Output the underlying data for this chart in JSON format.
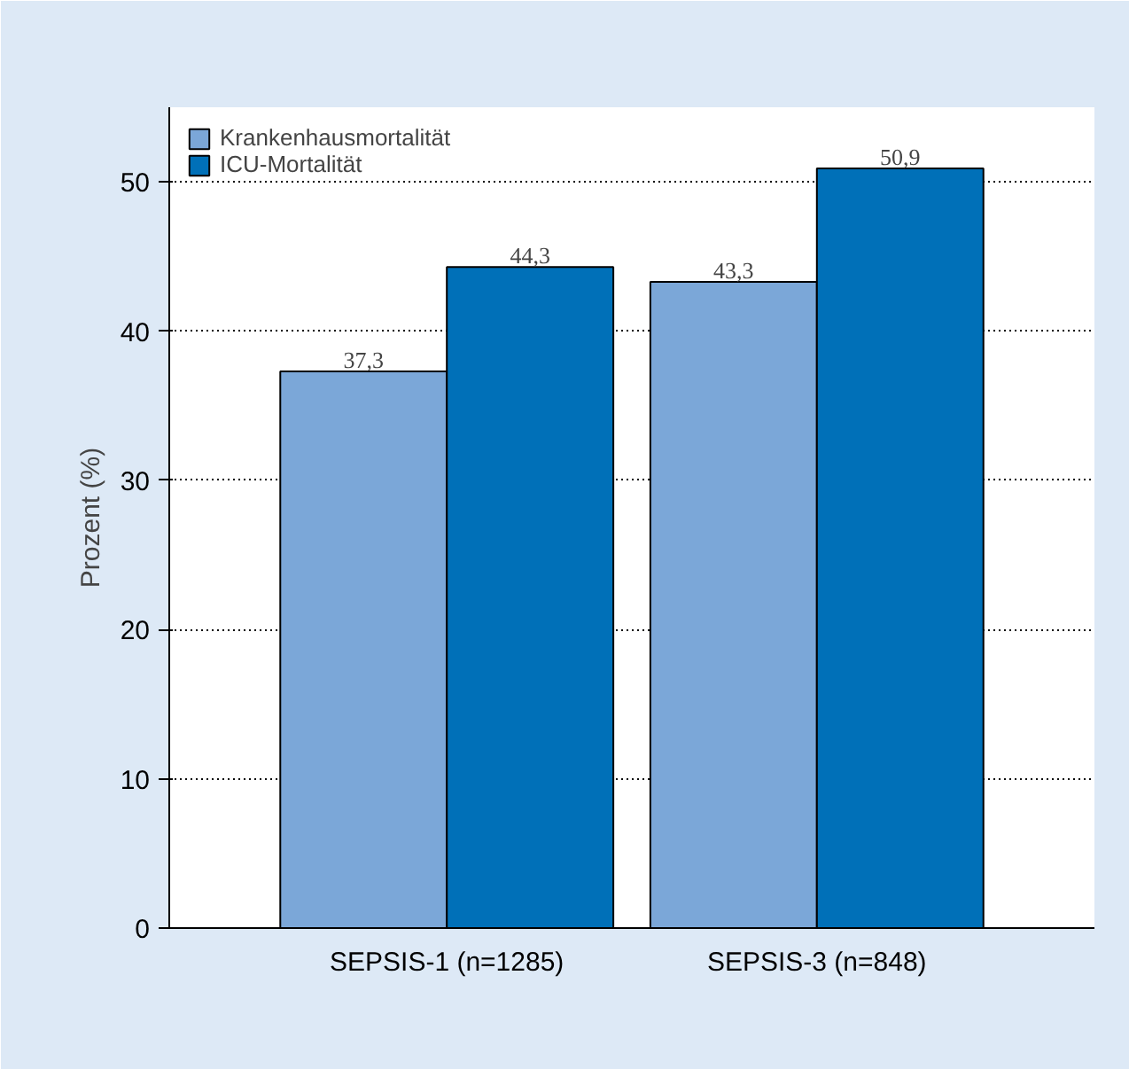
{
  "chart_data": {
    "type": "bar",
    "ylabel": "Prozent (%)",
    "categories": [
      "SEPSIS-1 (n=1285)",
      "SEPSIS-3 (n=848)"
    ],
    "series": [
      {
        "name": "Krankenhausmortalität",
        "color": "#7ba7d8",
        "values": [
          37.3,
          43.3
        ],
        "value_labels": [
          "37,3",
          "43,3"
        ]
      },
      {
        "name": "ICU-Mortalität",
        "color": "#0070b8",
        "values": [
          44.3,
          50.9
        ],
        "value_labels": [
          "44,3",
          "50,9"
        ]
      }
    ],
    "ylim": [
      0,
      55
    ],
    "yticks": [
      0,
      10,
      20,
      30,
      40,
      50
    ],
    "grid": "y",
    "legend": "top left"
  }
}
